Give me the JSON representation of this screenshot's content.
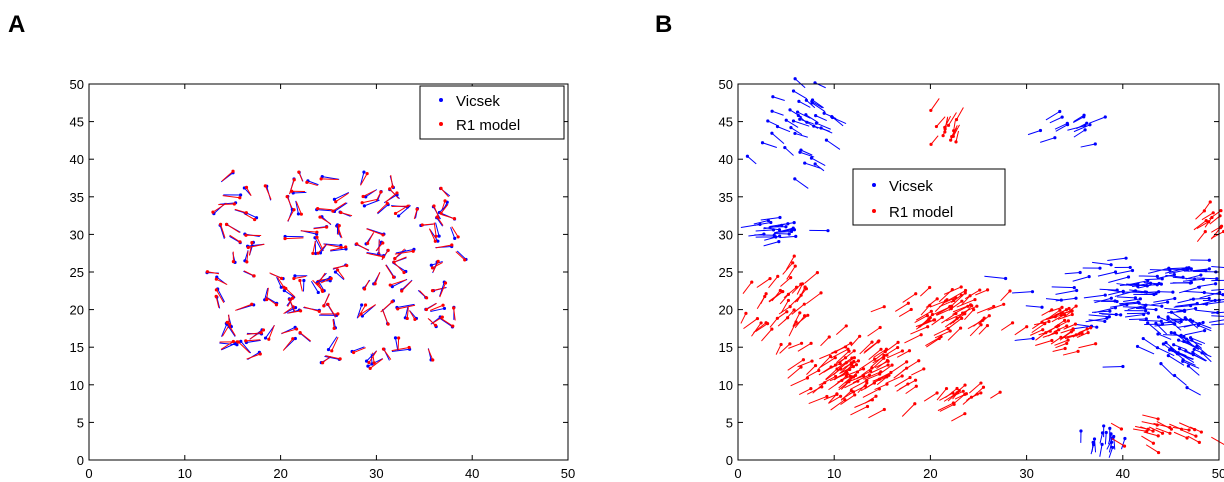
{
  "chart_data": [
    {
      "type": "scatter",
      "panel_label": "A",
      "title": "",
      "xlabel": "",
      "ylabel": "",
      "xlim": [
        0,
        50
      ],
      "ylim": [
        0,
        50
      ],
      "xticks": [
        "0",
        "10",
        "20",
        "30",
        "40",
        "50"
      ],
      "yticks": [
        "0",
        "5",
        "10",
        "15",
        "20",
        "25",
        "30",
        "35",
        "40",
        "45",
        "50"
      ],
      "grid": false,
      "legend_position": "top-right",
      "series": [
        {
          "name": "Vicsek",
          "color": "#0000ff",
          "region": {
            "x": [
              13.5,
              38.5
            ],
            "y": [
              13,
              38
            ]
          },
          "count": 150
        },
        {
          "name": "R1 model",
          "color": "#ff0000",
          "region": {
            "x": [
              13.5,
              38.5
            ],
            "y": [
              13,
              38
            ]
          },
          "count": 150
        }
      ]
    },
    {
      "type": "scatter",
      "panel_label": "B",
      "title": "",
      "xlabel": "",
      "ylabel": "",
      "xlim": [
        0,
        50
      ],
      "ylim": [
        0,
        50
      ],
      "xticks": [
        "0",
        "10",
        "20",
        "30",
        "40",
        "50"
      ],
      "yticks": [
        "0",
        "5",
        "10",
        "15",
        "20",
        "25",
        "30",
        "35",
        "40",
        "45",
        "50"
      ],
      "grid": false,
      "legend_position": "center-left",
      "series": [
        {
          "name": "Vicsek",
          "color": "#0000ff"
        },
        {
          "name": "R1 model",
          "color": "#ff0000"
        }
      ],
      "clusters": [
        {
          "series": 0,
          "cx": 8,
          "cy": 44,
          "sx": 3,
          "sy": 5,
          "n": 40,
          "angle": 145,
          "len": 1.6
        },
        {
          "series": 0,
          "cx": 33,
          "cy": 44,
          "sx": 3,
          "sy": 2,
          "n": 14,
          "angle": 25,
          "len": 1.6
        },
        {
          "series": 0,
          "cx": 2.5,
          "cy": 31,
          "sx": 2.5,
          "sy": 2,
          "n": 22,
          "angle": 5,
          "len": 1.8
        },
        {
          "series": 0,
          "cx": 41,
          "cy": 22,
          "sx": 9,
          "sy": 4,
          "n": 120,
          "angle": 5,
          "len": 2.0
        },
        {
          "series": 0,
          "cx": 47,
          "cy": 14,
          "sx": 3,
          "sy": 4,
          "n": 45,
          "angle": 140,
          "len": 1.8
        },
        {
          "series": 0,
          "cx": 38,
          "cy": 1.5,
          "sx": 2.5,
          "sy": 1.2,
          "n": 16,
          "angle": 80,
          "len": 1.5
        },
        {
          "series": 1,
          "cx": 22.5,
          "cy": 46,
          "sx": 2,
          "sy": 3,
          "n": 14,
          "angle": 250,
          "len": 1.6
        },
        {
          "series": 1,
          "cx": 4,
          "cy": 21,
          "sx": 3,
          "sy": 4,
          "n": 40,
          "angle": 55,
          "len": 1.8
        },
        {
          "series": 1,
          "cx": 11,
          "cy": 11,
          "sx": 5,
          "sy": 4,
          "n": 110,
          "angle": 40,
          "len": 1.8
        },
        {
          "series": 1,
          "cx": 21,
          "cy": 19,
          "sx": 4,
          "sy": 3,
          "n": 60,
          "angle": 40,
          "len": 1.8
        },
        {
          "series": 1,
          "cx": 23,
          "cy": 8,
          "sx": 3,
          "sy": 1.5,
          "n": 20,
          "angle": 45,
          "len": 1.6
        },
        {
          "series": 1,
          "cx": 33,
          "cy": 17,
          "sx": 2.5,
          "sy": 2.5,
          "n": 45,
          "angle": 30,
          "len": 1.6
        },
        {
          "series": 1,
          "cx": 43,
          "cy": 4,
          "sx": 4,
          "sy": 1.5,
          "n": 22,
          "angle": -25,
          "len": 1.6
        },
        {
          "series": 1,
          "cx": 48.5,
          "cy": 31,
          "sx": 1.5,
          "sy": 2,
          "n": 12,
          "angle": 50,
          "len": 1.6
        }
      ]
    }
  ]
}
